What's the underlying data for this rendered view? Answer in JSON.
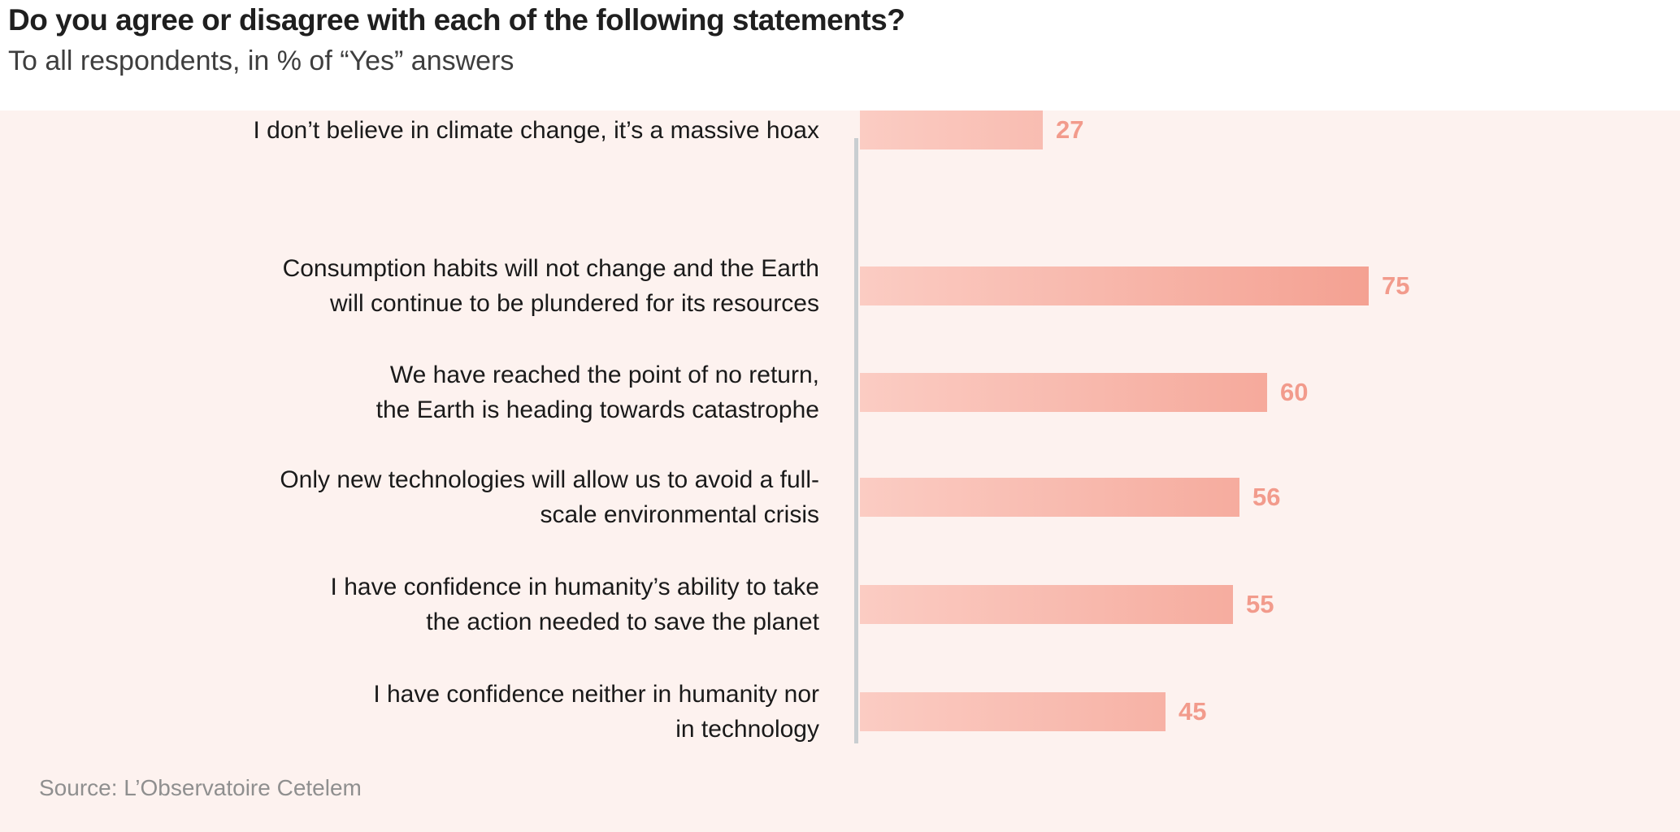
{
  "header": {
    "title": "Do you agree or disagree with each of the following statements?",
    "subtitle": "To all respondents, in % of “Yes” answers"
  },
  "source": "Source: L’Observatoire Cetelem",
  "colors": {
    "chart_background": "#fdf2ef",
    "bar_gradient_start": "#fbccc3",
    "bar_gradient_end": "#f4a192",
    "value_label": "#f29b8c",
    "axis_line": "#c9ced1"
  },
  "chart_data": {
    "type": "bar",
    "orientation": "horizontal",
    "title": "Do you agree or disagree with each of the following statements?",
    "subtitle": "To all respondents, in % of “Yes” answers",
    "categories": [
      "Consumption habits will not change and the Earth will continue to be plundered for its resources",
      "We have reached the point of no return, the Earth is heading towards catastrophe",
      "Only new technologies will allow us to avoid a full-scale environmental crisis",
      "I have confidence in humanity’s ability to take the action needed to save the planet",
      "I have confidence neither in humanity nor in technology",
      "I don’t believe in climate change, it’s a massive hoax"
    ],
    "values": [
      75,
      60,
      56,
      55,
      45,
      27
    ],
    "unit": "% of “Yes” answers",
    "xlim": [
      0,
      90
    ],
    "grid": false,
    "legend": "none",
    "data_labels": true
  },
  "rows": [
    {
      "line1": "Consumption habits will not change and the Earth",
      "line2": "will continue to be plundered for its resources",
      "value": "75"
    },
    {
      "line1": "We have reached the point of no return,",
      "line2": "the Earth is heading towards catastrophe",
      "value": "60"
    },
    {
      "line1": "Only new technologies will allow us to avoid a full-",
      "line2": "scale environmental crisis",
      "value": "56"
    },
    {
      "line1": "I have confidence in humanity’s ability to take",
      "line2": "the action needed to save the planet",
      "value": "55"
    },
    {
      "line1": "I have confidence neither in humanity nor",
      "line2": "in technology",
      "value": "45"
    },
    {
      "line1": "I don’t believe in climate change, it’s a massive hoax",
      "line2": "",
      "value": "27"
    }
  ]
}
